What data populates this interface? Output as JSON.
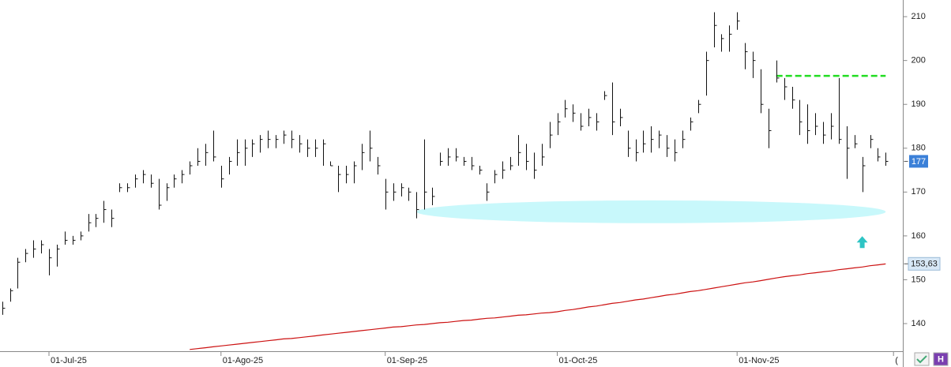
{
  "chart_data": {
    "type": "ohlc",
    "categories": [
      null,
      null,
      null,
      null,
      null,
      null,
      "01-Jul-25",
      null,
      null,
      null,
      null,
      null,
      null,
      null,
      null,
      null,
      null,
      null,
      null,
      null,
      null,
      null,
      null,
      null,
      null,
      null,
      null,
      null,
      "01-Ago-25",
      null,
      null,
      null,
      null,
      null,
      null,
      null,
      null,
      null,
      null,
      null,
      null,
      null,
      null,
      null,
      null,
      null,
      null,
      null,
      null,
      "01-Sep-25",
      null,
      null,
      null,
      null,
      null,
      null,
      null,
      null,
      null,
      null,
      null,
      null,
      null,
      null,
      null,
      null,
      null,
      null,
      null,
      null,
      null,
      "01-Oct-25",
      null,
      null,
      null,
      null,
      null,
      null,
      null,
      null,
      null,
      null,
      null,
      null,
      null,
      null,
      null,
      null,
      null,
      null,
      null,
      null,
      null,
      null,
      "01-Nov-25",
      null,
      null,
      null,
      null,
      null,
      null,
      null,
      null,
      null,
      null,
      null,
      null,
      null,
      null,
      null,
      null,
      null,
      null,
      null,
      "("
    ],
    "high": [
      145,
      148,
      155,
      157,
      159,
      159,
      157,
      158,
      161,
      160,
      161,
      165,
      165,
      168,
      166,
      172,
      172,
      174,
      175,
      174,
      173,
      172,
      174,
      175,
      177,
      180,
      181,
      184,
      176,
      178,
      182,
      182,
      182,
      183,
      184,
      183,
      184,
      184,
      183,
      182,
      182,
      182,
      177,
      176,
      176,
      177,
      181,
      184,
      178,
      173,
      172,
      172,
      171,
      170,
      182,
      171,
      179,
      180,
      180,
      178,
      178,
      176,
      172,
      175,
      177,
      178,
      183,
      181,
      179,
      181,
      186,
      188,
      191,
      190,
      188,
      189,
      188,
      193,
      195,
      189,
      184,
      182,
      184,
      185,
      184,
      183,
      182,
      184,
      187,
      191,
      202,
      211,
      206,
      208,
      211,
      204,
      202,
      198,
      189,
      200,
      196,
      194,
      191,
      190,
      188,
      186,
      188,
      196,
      185,
      183,
      178,
      183,
      180,
      179,
      null
    ],
    "low": [
      142,
      145,
      148,
      154,
      155,
      156,
      151,
      153,
      158,
      158,
      159,
      161,
      162,
      163,
      162,
      170,
      170,
      171,
      172,
      171,
      166,
      168,
      171,
      172,
      174,
      176,
      176,
      177,
      171,
      174,
      176,
      176,
      178,
      179,
      180,
      180,
      181,
      180,
      179,
      178,
      178,
      176,
      176,
      170,
      172,
      172,
      175,
      177,
      174,
      166,
      168,
      169,
      168,
      164,
      166,
      167,
      176,
      176,
      177,
      176,
      175,
      174,
      168,
      172,
      173,
      175,
      176,
      175,
      173,
      176,
      180,
      183,
      187,
      186,
      184,
      185,
      184,
      191,
      183,
      185,
      178,
      177,
      179,
      179,
      180,
      178,
      177,
      180,
      184,
      188,
      192,
      203,
      202,
      202,
      207,
      198,
      196,
      188,
      180,
      195,
      191,
      189,
      183,
      181,
      183,
      181,
      182,
      181,
      173,
      180,
      170,
      180,
      177,
      176,
      null
    ],
    "close": [
      143.5,
      147.5,
      154,
      156,
      157,
      158,
      155,
      157,
      159,
      159,
      160,
      163,
      164,
      166,
      164,
      171,
      171,
      173,
      174,
      172,
      167,
      171,
      173,
      174,
      176,
      177,
      179,
      178,
      173,
      177,
      179,
      180,
      181,
      182,
      182,
      182,
      183,
      182,
      181,
      180,
      180,
      181,
      176,
      174,
      174,
      176,
      179,
      180,
      176,
      170,
      170,
      171,
      170,
      166,
      170,
      169,
      177,
      178,
      178,
      177,
      176,
      175,
      170,
      174,
      175,
      176,
      179,
      177,
      175,
      178,
      183,
      186,
      189,
      188,
      185,
      187,
      186,
      192,
      186,
      187,
      180,
      179,
      181,
      182,
      183,
      180,
      179,
      182,
      186,
      190,
      200,
      208,
      205,
      206,
      209,
      202,
      200,
      190,
      184,
      196,
      194,
      191,
      186,
      184,
      185,
      183,
      185,
      182,
      180,
      181,
      176,
      182,
      178,
      177,
      null
    ],
    "moving_average": {
      "color": "#cc1111",
      "values": [
        null,
        null,
        null,
        null,
        null,
        null,
        null,
        null,
        null,
        null,
        null,
        null,
        null,
        null,
        null,
        null,
        null,
        null,
        null,
        null,
        null,
        null,
        null,
        null,
        134.1,
        134.3,
        134.5,
        134.7,
        134.9,
        135.1,
        135.3,
        135.5,
        135.7,
        135.9,
        136.1,
        136.3,
        136.5,
        136.6,
        136.8,
        137.0,
        137.2,
        137.4,
        137.6,
        137.8,
        138.0,
        138.2,
        138.4,
        138.6,
        138.8,
        139.0,
        139.2,
        139.3,
        139.5,
        139.7,
        139.8,
        140.0,
        140.2,
        140.3,
        140.5,
        140.7,
        140.8,
        141.0,
        141.2,
        141.3,
        141.5,
        141.7,
        141.9,
        142.0,
        142.2,
        142.4,
        142.5,
        142.7,
        143.0,
        143.2,
        143.5,
        143.8,
        144.0,
        144.3,
        144.6,
        144.8,
        145.1,
        145.4,
        145.6,
        145.9,
        146.2,
        146.5,
        146.7,
        147.0,
        147.3,
        147.5,
        147.8,
        148.1,
        148.4,
        148.7,
        149.0,
        149.3,
        149.5,
        149.8,
        150.1,
        150.4,
        150.7,
        150.9,
        151.1,
        151.4,
        151.6,
        151.8,
        152.0,
        152.3,
        152.5,
        152.7,
        152.9,
        153.2,
        153.4,
        153.6,
        null
      ]
    },
    "bar_color": "#111111",
    "ylim": [
      133.7,
      213.8
    ],
    "yticks": [
      140,
      150,
      160,
      170,
      180,
      190,
      200,
      210
    ],
    "last_price": 177,
    "ma_label": {
      "value": 153.63,
      "label": "153,63"
    },
    "hline": {
      "y": 196.5,
      "start": 99,
      "end": 113,
      "color": "#22dd22"
    },
    "zone": {
      "ylim": [
        162.9,
        168.1
      ],
      "start": 53,
      "end": 113,
      "color": "#c8f8fb"
    },
    "arrow": {
      "x": 110,
      "y": 158.5,
      "color": "#2ec4c4"
    }
  }
}
